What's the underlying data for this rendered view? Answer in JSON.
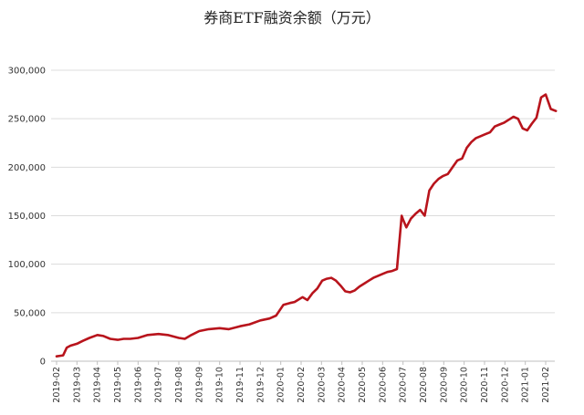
{
  "chart_data": {
    "type": "line",
    "title": "券商ETF融资余额（万元）",
    "ylim": [
      0,
      300000
    ],
    "yticks": [
      0,
      50000,
      100000,
      150000,
      200000,
      250000,
      300000
    ],
    "ytick_labels": [
      "0",
      "50,000",
      "100,000",
      "150,000",
      "200,000",
      "250,000",
      "300,000"
    ],
    "xtick_labels": [
      "2019-02",
      "2019-03",
      "2019-04",
      "2019-05",
      "2019-06",
      "2019-07",
      "2019-08",
      "2019-09",
      "2019-10",
      "2019-11",
      "2019-12",
      "2020-01",
      "2020-02",
      "2020-03",
      "2020-04",
      "2020-05",
      "2020-06",
      "2020-07",
      "2020-08",
      "2020-09",
      "2020-10",
      "2020-11",
      "2020-12",
      "2021-01",
      "2021-02"
    ],
    "grid": true,
    "legend": "none",
    "series_color": "#b8141c",
    "series": [
      {
        "x": [
          "2019-02-01",
          "2019-02-10",
          "2019-02-15",
          "2019-02-20",
          "2019-03-01",
          "2019-03-10",
          "2019-03-20",
          "2019-04-01",
          "2019-04-10",
          "2019-04-20",
          "2019-05-01",
          "2019-05-10",
          "2019-05-20",
          "2019-06-01",
          "2019-06-15",
          "2019-07-01",
          "2019-07-15",
          "2019-08-01",
          "2019-08-10",
          "2019-08-20",
          "2019-09-01",
          "2019-09-15",
          "2019-10-01",
          "2019-10-15",
          "2019-11-01",
          "2019-11-15",
          "2019-12-01",
          "2019-12-15",
          "2019-12-25",
          "2020-01-05",
          "2020-01-15",
          "2020-01-22",
          "2020-02-03",
          "2020-02-10",
          "2020-02-17",
          "2020-02-24",
          "2020-03-02",
          "2020-03-09",
          "2020-03-16",
          "2020-03-23",
          "2020-03-30",
          "2020-04-06",
          "2020-04-13",
          "2020-04-20",
          "2020-04-27",
          "2020-05-04",
          "2020-05-11",
          "2020-05-18",
          "2020-05-25",
          "2020-06-01",
          "2020-06-08",
          "2020-06-15",
          "2020-06-22",
          "2020-06-29",
          "2020-07-01",
          "2020-07-06",
          "2020-07-13",
          "2020-07-20",
          "2020-07-27",
          "2020-08-03",
          "2020-08-10",
          "2020-08-17",
          "2020-08-24",
          "2020-08-31",
          "2020-09-07",
          "2020-09-14",
          "2020-09-21",
          "2020-09-28",
          "2020-10-05",
          "2020-10-12",
          "2020-10-19",
          "2020-10-26",
          "2020-11-02",
          "2020-11-09",
          "2020-11-16",
          "2020-11-23",
          "2020-11-30",
          "2020-12-07",
          "2020-12-14",
          "2020-12-21",
          "2020-12-28",
          "2021-01-04",
          "2021-01-11",
          "2021-01-18",
          "2021-01-25",
          "2021-02-01",
          "2021-02-08",
          "2021-02-15"
        ],
        "values": [
          5000,
          6000,
          14000,
          16000,
          18000,
          21000,
          24000,
          27000,
          26000,
          23000,
          22000,
          23000,
          23000,
          24000,
          27000,
          28000,
          27000,
          24000,
          23000,
          27000,
          31000,
          33000,
          34000,
          33000,
          36000,
          38000,
          42000,
          44000,
          47000,
          58000,
          60000,
          61000,
          66000,
          63000,
          70000,
          75000,
          83000,
          85000,
          86000,
          83000,
          78000,
          72000,
          71000,
          73000,
          77000,
          80000,
          83000,
          86000,
          88000,
          90000,
          92000,
          93000,
          95000,
          150000,
          146000,
          138000,
          147000,
          152000,
          156000,
          150000,
          176000,
          183000,
          188000,
          191000,
          193000,
          200000,
          207000,
          209000,
          220000,
          226000,
          230000,
          232000,
          234000,
          236000,
          242000,
          244000,
          246000,
          249000,
          252000,
          250000,
          240000,
          238000,
          245000,
          251000,
          272000,
          275000,
          260000,
          258000
        ]
      }
    ]
  }
}
